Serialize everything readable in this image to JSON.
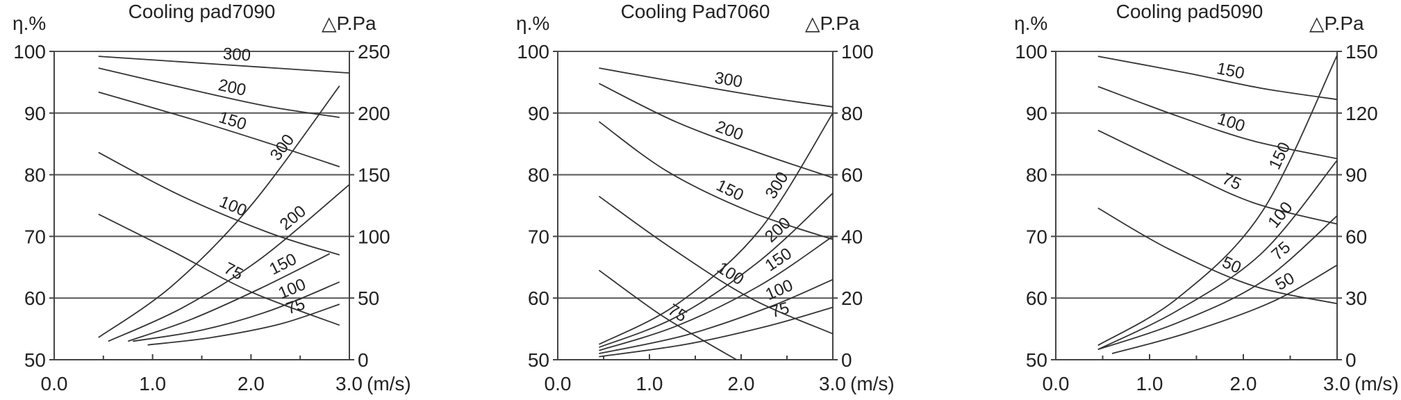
{
  "chart_data": [
    {
      "type": "line",
      "title": "Cooling pad7090",
      "left_axis_label": "η.%",
      "right_axis_label": "△P.Pa",
      "x_unit_label": "(m/s)",
      "xlim": [
        0,
        3
      ],
      "x_ticks": [
        "0.0",
        "1.0",
        "2.0",
        "3.0"
      ],
      "ylim_left": [
        50,
        100
      ],
      "y_ticks_left": [
        "50",
        "60",
        "70",
        "80",
        "90",
        "100"
      ],
      "ylim_right": [
        0,
        250
      ],
      "y_ticks_right": [
        "0",
        "50",
        "100",
        "150",
        "200",
        "250"
      ],
      "grid": "horizontal",
      "efficiency_series": [
        {
          "name": "300",
          "x": [
            0.45,
            3.0
          ],
          "y": [
            99.2,
            96.5
          ]
        },
        {
          "name": "200",
          "x": [
            0.45,
            1.5,
            2.2,
            2.9
          ],
          "y": [
            97.3,
            93.4,
            91.0,
            89.3
          ]
        },
        {
          "name": "150",
          "x": [
            0.45,
            1.4,
            2.2,
            2.9
          ],
          "y": [
            93.4,
            89.0,
            85.0,
            81.3
          ]
        },
        {
          "name": "100",
          "x": [
            0.45,
            1.3,
            2.2,
            2.9
          ],
          "y": [
            83.6,
            76.5,
            70.5,
            67.0
          ]
        },
        {
          "name": "75",
          "x": [
            0.45,
            1.2,
            2.0,
            2.9
          ],
          "y": [
            73.6,
            67.6,
            61.0,
            55.6
          ]
        }
      ],
      "pressure_series": [
        {
          "name": "300",
          "x": [
            0.45,
            1.2,
            2.0,
            2.9
          ],
          "y": [
            18,
            60,
            125,
            222
          ]
        },
        {
          "name": "200",
          "x": [
            0.55,
            1.3,
            2.1,
            3.0
          ],
          "y": [
            15,
            42,
            82,
            142
          ]
        },
        {
          "name": "150",
          "x": [
            0.75,
            1.4,
            2.1,
            2.8
          ],
          "y": [
            15,
            33,
            58,
            86
          ]
        },
        {
          "name": "100",
          "x": [
            0.8,
            1.5,
            2.2,
            2.9
          ],
          "y": [
            15,
            24,
            40,
            63
          ]
        },
        {
          "name": "75",
          "x": [
            0.95,
            1.6,
            2.3,
            2.9
          ],
          "y": [
            12,
            18,
            29,
            45
          ]
        }
      ]
    },
    {
      "type": "line",
      "title": "Cooling Pad7060",
      "left_axis_label": "η.%",
      "right_axis_label": "△P.Pa",
      "x_unit_label": "(m/s)",
      "xlim": [
        0,
        3
      ],
      "x_ticks": [
        "0.0",
        "1.0",
        "2.0",
        "3.0"
      ],
      "ylim_left": [
        50,
        100
      ],
      "y_ticks_left": [
        "50",
        "60",
        "70",
        "80",
        "90",
        "100"
      ],
      "ylim_right": [
        0,
        100
      ],
      "y_ticks_right": [
        "0",
        "20",
        "40",
        "60",
        "80",
        "100"
      ],
      "grid": "horizontal",
      "efficiency_series": [
        {
          "name": "300",
          "x": [
            0.45,
            1.5,
            2.3,
            3.0
          ],
          "y": [
            97.3,
            94.5,
            92.5,
            91.0
          ]
        },
        {
          "name": "200",
          "x": [
            0.45,
            1.3,
            2.2,
            3.0
          ],
          "y": [
            94.8,
            88.5,
            83.5,
            79.5
          ]
        },
        {
          "name": "150",
          "x": [
            0.45,
            1.2,
            2.1,
            3.0
          ],
          "y": [
            88.6,
            80.5,
            74.0,
            69.5
          ]
        },
        {
          "name": "100",
          "x": [
            0.45,
            1.2,
            2.1,
            3.0
          ],
          "y": [
            76.5,
            68.5,
            60.0,
            54.2
          ]
        },
        {
          "name": "75",
          "x": [
            0.45,
            1.1,
            1.6,
            1.95
          ],
          "y": [
            64.5,
            57.5,
            53.0,
            50.0
          ]
        }
      ],
      "pressure_series": [
        {
          "name": "300",
          "x": [
            0.45,
            1.3,
            2.2,
            3.0
          ],
          "y": [
            5,
            18,
            42,
            80
          ]
        },
        {
          "name": "200",
          "x": [
            0.45,
            1.3,
            2.2,
            3.0
          ],
          "y": [
            4,
            14,
            32,
            54
          ]
        },
        {
          "name": "150",
          "x": [
            0.45,
            1.3,
            2.2,
            3.0
          ],
          "y": [
            3,
            11,
            24,
            40
          ]
        },
        {
          "name": "100",
          "x": [
            0.45,
            1.4,
            2.3,
            3.0
          ],
          "y": [
            2,
            8,
            17,
            26
          ]
        },
        {
          "name": "75",
          "x": [
            0.45,
            1.4,
            2.3,
            3.0
          ],
          "y": [
            1,
            5,
            11,
            17
          ]
        }
      ]
    },
    {
      "type": "line",
      "title": "Cooling pad5090",
      "left_axis_label": "η.%",
      "right_axis_label": "△P.Pa",
      "x_unit_label": "(m/s)",
      "xlim": [
        0,
        3
      ],
      "x_ticks": [
        "0.0",
        "1.0",
        "2.0",
        "3.0"
      ],
      "ylim_left": [
        50,
        100
      ],
      "y_ticks_left": [
        "50",
        "60",
        "70",
        "80",
        "90",
        "100"
      ],
      "ylim_right": [
        0,
        150
      ],
      "y_ticks_right": [
        "0",
        "30",
        "60",
        "90",
        "120",
        "150"
      ],
      "grid": "horizontal",
      "efficiency_series": [
        {
          "name": "150",
          "x": [
            0.45,
            1.4,
            2.2,
            3.0
          ],
          "y": [
            99.2,
            96.5,
            94.0,
            92.2
          ]
        },
        {
          "name": "100",
          "x": [
            0.45,
            1.3,
            2.1,
            3.0
          ],
          "y": [
            94.3,
            89.5,
            85.5,
            82.6
          ]
        },
        {
          "name": "75",
          "x": [
            0.45,
            1.3,
            2.1,
            3.0
          ],
          "y": [
            87.2,
            81.0,
            75.5,
            72.0
          ]
        },
        {
          "name": "50",
          "x": [
            0.45,
            1.2,
            2.1,
            3.0
          ],
          "y": [
            74.6,
            68.0,
            62.0,
            59.1
          ]
        }
      ],
      "pressure_series": [
        {
          "name": "150",
          "x": [
            0.45,
            1.3,
            2.2,
            3.0
          ],
          "y": [
            7,
            30,
            72,
            148
          ]
        },
        {
          "name": "100",
          "x": [
            0.45,
            1.3,
            2.2,
            3.0
          ],
          "y": [
            5,
            24,
            52,
            97
          ]
        },
        {
          "name": "75",
          "x": [
            0.45,
            1.3,
            2.2,
            3.0
          ],
          "y": [
            5,
            18,
            38,
            70
          ]
        },
        {
          "name": "50",
          "x": [
            0.6,
            1.4,
            2.3,
            3.0
          ],
          "y": [
            3,
            13,
            28,
            46
          ]
        }
      ]
    }
  ]
}
